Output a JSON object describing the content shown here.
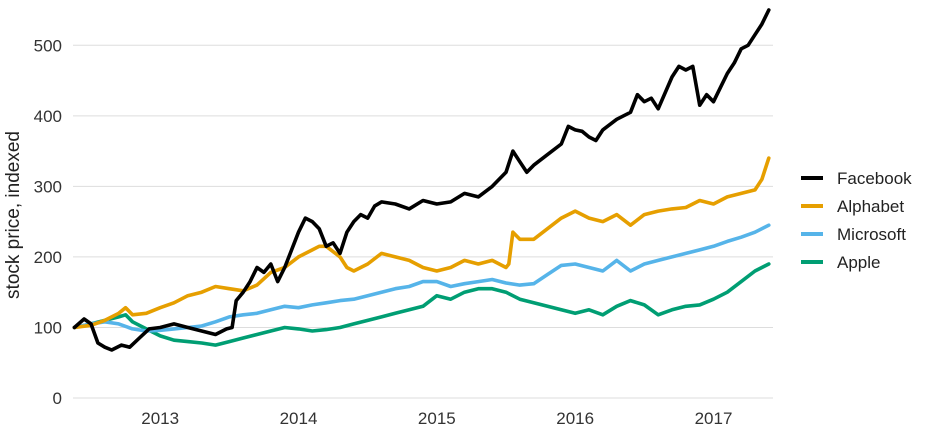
{
  "chart_data": {
    "type": "line",
    "title": "",
    "xlabel": "",
    "ylabel": "stock price, indexed",
    "xlim": [
      2012.37,
      2017.43
    ],
    "ylim": [
      0,
      550
    ],
    "x_ticks": [
      2013,
      2014,
      2015,
      2016,
      2017
    ],
    "x_tick_labels": [
      "2013",
      "2014",
      "2015",
      "2016",
      "2017"
    ],
    "y_ticks": [
      0,
      100,
      200,
      300,
      400,
      500
    ],
    "y_tick_labels": [
      "0",
      "100",
      "200",
      "300",
      "400",
      "500"
    ],
    "grid": "horizontal",
    "legend_position": "right",
    "series": [
      {
        "name": "Facebook",
        "color": "#000000",
        "x": [
          2012.38,
          2012.45,
          2012.5,
          2012.55,
          2012.6,
          2012.65,
          2012.72,
          2012.78,
          2012.85,
          2012.92,
          2013.0,
          2013.1,
          2013.2,
          2013.3,
          2013.4,
          2013.48,
          2013.52,
          2013.55,
          2013.6,
          2013.65,
          2013.7,
          2013.75,
          2013.8,
          2013.85,
          2013.9,
          2013.95,
          2014.0,
          2014.05,
          2014.1,
          2014.15,
          2014.2,
          2014.25,
          2014.3,
          2014.35,
          2014.4,
          2014.45,
          2014.5,
          2014.55,
          2014.6,
          2014.7,
          2014.8,
          2014.9,
          2015.0,
          2015.1,
          2015.2,
          2015.3,
          2015.4,
          2015.5,
          2015.55,
          2015.6,
          2015.65,
          2015.7,
          2015.8,
          2015.9,
          2015.95,
          2016.0,
          2016.05,
          2016.1,
          2016.15,
          2016.2,
          2016.3,
          2016.4,
          2016.45,
          2016.5,
          2016.55,
          2016.6,
          2016.7,
          2016.75,
          2016.8,
          2016.85,
          2016.9,
          2016.95,
          2017.0,
          2017.05,
          2017.1,
          2017.15,
          2017.2,
          2017.25,
          2017.3,
          2017.35,
          2017.4
        ],
        "values": [
          100,
          112,
          105,
          78,
          72,
          68,
          75,
          72,
          85,
          98,
          100,
          105,
          100,
          95,
          90,
          98,
          100,
          138,
          150,
          165,
          185,
          178,
          190,
          165,
          185,
          210,
          235,
          255,
          250,
          240,
          215,
          220,
          205,
          235,
          250,
          260,
          255,
          272,
          278,
          275,
          268,
          280,
          275,
          278,
          290,
          285,
          300,
          320,
          350,
          335,
          320,
          330,
          345,
          360,
          385,
          380,
          378,
          370,
          365,
          380,
          395,
          405,
          430,
          420,
          425,
          410,
          455,
          470,
          465,
          470,
          415,
          430,
          420,
          440,
          460,
          475,
          495,
          500,
          515,
          530,
          550
        ]
      },
      {
        "name": "Alphabet",
        "color": "#E69F00",
        "x": [
          2012.38,
          2012.5,
          2012.6,
          2012.7,
          2012.75,
          2012.8,
          2012.9,
          2013.0,
          2013.1,
          2013.2,
          2013.3,
          2013.4,
          2013.5,
          2013.6,
          2013.7,
          2013.8,
          2013.9,
          2014.0,
          2014.1,
          2014.15,
          2014.2,
          2014.3,
          2014.35,
          2014.4,
          2014.5,
          2014.6,
          2014.7,
          2014.8,
          2014.9,
          2015.0,
          2015.1,
          2015.2,
          2015.3,
          2015.4,
          2015.5,
          2015.52,
          2015.55,
          2015.6,
          2015.7,
          2015.8,
          2015.9,
          2016.0,
          2016.05,
          2016.1,
          2016.2,
          2016.3,
          2016.4,
          2016.5,
          2016.6,
          2016.7,
          2016.8,
          2016.9,
          2017.0,
          2017.1,
          2017.2,
          2017.3,
          2017.35,
          2017.4
        ],
        "values": [
          100,
          103,
          110,
          120,
          128,
          118,
          120,
          128,
          135,
          145,
          150,
          158,
          155,
          152,
          160,
          178,
          185,
          200,
          210,
          215,
          215,
          200,
          185,
          180,
          190,
          205,
          200,
          195,
          185,
          180,
          185,
          195,
          190,
          195,
          185,
          190,
          235,
          225,
          225,
          240,
          255,
          265,
          260,
          255,
          250,
          260,
          245,
          260,
          265,
          268,
          270,
          280,
          275,
          285,
          290,
          295,
          310,
          340
        ]
      },
      {
        "name": "Microsoft",
        "color": "#56B4E9",
        "x": [
          2012.38,
          2012.5,
          2012.6,
          2012.7,
          2012.8,
          2012.9,
          2013.0,
          2013.1,
          2013.2,
          2013.3,
          2013.4,
          2013.5,
          2013.6,
          2013.7,
          2013.8,
          2013.9,
          2014.0,
          2014.1,
          2014.2,
          2014.3,
          2014.4,
          2014.5,
          2014.6,
          2014.7,
          2014.8,
          2014.9,
          2015.0,
          2015.1,
          2015.2,
          2015.3,
          2015.4,
          2015.5,
          2015.6,
          2015.7,
          2015.8,
          2015.9,
          2016.0,
          2016.1,
          2016.2,
          2016.3,
          2016.4,
          2016.5,
          2016.6,
          2016.7,
          2016.8,
          2016.9,
          2017.0,
          2017.1,
          2017.2,
          2017.3,
          2017.4
        ],
        "values": [
          100,
          105,
          108,
          105,
          98,
          95,
          96,
          98,
          100,
          102,
          108,
          115,
          118,
          120,
          125,
          130,
          128,
          132,
          135,
          138,
          140,
          145,
          150,
          155,
          158,
          165,
          165,
          158,
          162,
          165,
          168,
          163,
          160,
          162,
          175,
          188,
          190,
          185,
          180,
          195,
          180,
          190,
          195,
          200,
          205,
          210,
          215,
          222,
          228,
          235,
          245
        ]
      },
      {
        "name": "Apple",
        "color": "#009E73",
        "x": [
          2012.38,
          2012.5,
          2012.6,
          2012.7,
          2012.75,
          2012.8,
          2012.9,
          2013.0,
          2013.1,
          2013.2,
          2013.3,
          2013.4,
          2013.5,
          2013.6,
          2013.7,
          2013.8,
          2013.9,
          2014.0,
          2014.1,
          2014.2,
          2014.3,
          2014.4,
          2014.5,
          2014.6,
          2014.7,
          2014.8,
          2014.9,
          2015.0,
          2015.1,
          2015.2,
          2015.3,
          2015.4,
          2015.5,
          2015.6,
          2015.7,
          2015.8,
          2015.9,
          2016.0,
          2016.1,
          2016.2,
          2016.3,
          2016.4,
          2016.5,
          2016.6,
          2016.7,
          2016.8,
          2016.9,
          2017.0,
          2017.1,
          2017.2,
          2017.3,
          2017.4
        ],
        "values": [
          100,
          105,
          110,
          115,
          118,
          108,
          98,
          88,
          82,
          80,
          78,
          75,
          80,
          85,
          90,
          95,
          100,
          98,
          95,
          97,
          100,
          105,
          110,
          115,
          120,
          125,
          130,
          145,
          140,
          150,
          155,
          155,
          150,
          140,
          135,
          130,
          125,
          120,
          125,
          118,
          130,
          138,
          132,
          118,
          125,
          130,
          132,
          140,
          150,
          165,
          180,
          190
        ]
      }
    ]
  }
}
